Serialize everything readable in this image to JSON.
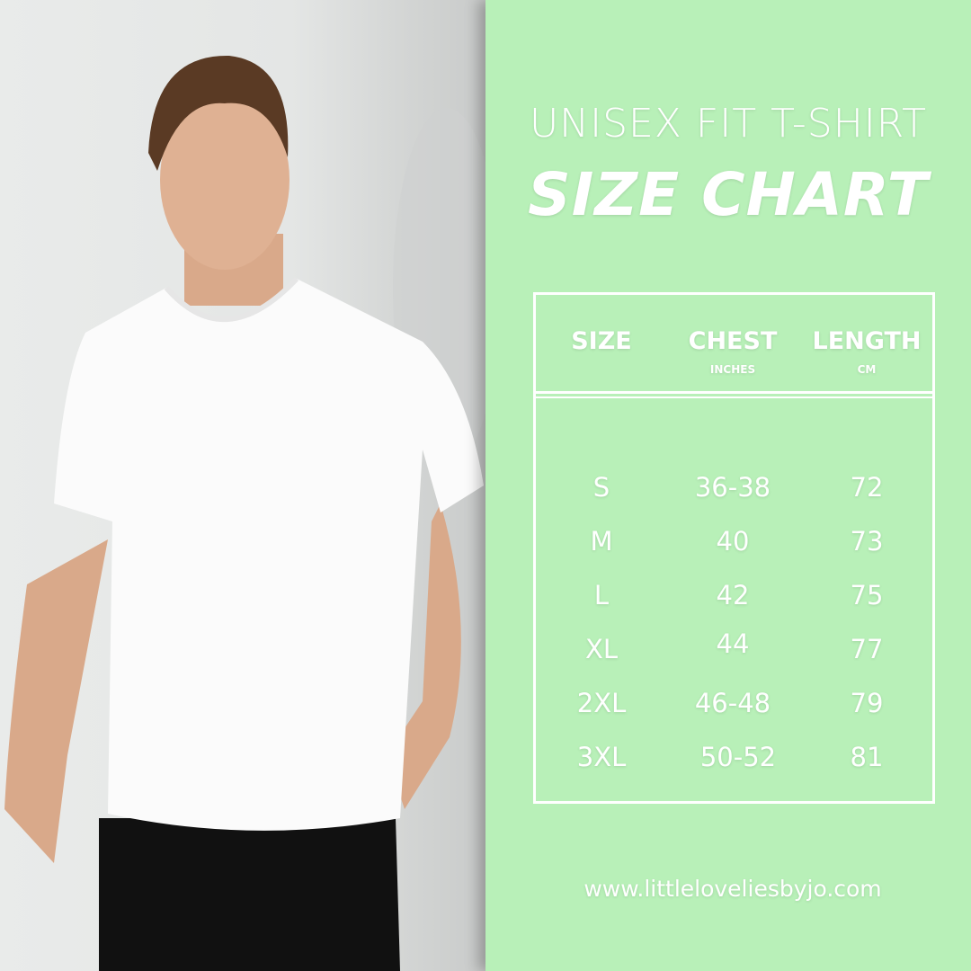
{
  "title_line1": "UNISEX FIT T-SHIRT",
  "title_line2": "SIZE CHART",
  "table": {
    "headers": [
      {
        "label": "SIZE",
        "unit": ""
      },
      {
        "label": "CHEST",
        "unit": "INCHES"
      },
      {
        "label": "LENGTH",
        "unit": "CM"
      }
    ],
    "rows": [
      [
        "S",
        "36-38",
        "72"
      ],
      [
        "M",
        "40",
        "73"
      ],
      [
        "L",
        "42",
        "75"
      ],
      [
        "XL",
        "44",
        "77"
      ],
      [
        "2XL",
        "46-48",
        "79"
      ],
      [
        "3XL",
        "50-52",
        "81"
      ]
    ]
  },
  "website": "www.littleloveliesbyjo.com",
  "colors": {
    "panel": "#b8f0b8",
    "text": "#ffffff"
  }
}
